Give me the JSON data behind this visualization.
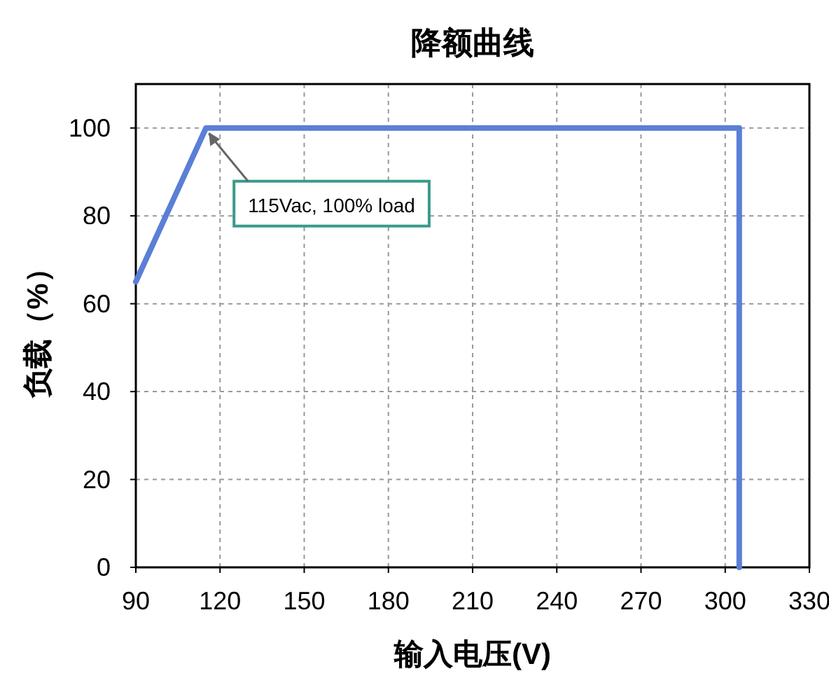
{
  "chart_data": {
    "type": "line",
    "title": "降额曲线",
    "xlabel": "输入电压(V)",
    "ylabel": "负载（%）",
    "series": [
      {
        "x": [
          90,
          115,
          305,
          305
        ],
        "values": [
          65,
          100,
          100,
          0
        ],
        "color": "#5b7fd6"
      }
    ],
    "xlim": [
      90,
      330
    ],
    "ylim": [
      0,
      110
    ],
    "xticks": [
      90,
      120,
      150,
      180,
      210,
      240,
      270,
      300,
      330
    ],
    "yticks": [
      0,
      20,
      40,
      60,
      80,
      100
    ],
    "grid": true,
    "annotations": [
      {
        "text": "115Vac, 100% load",
        "x": 115,
        "y": 100
      }
    ]
  }
}
